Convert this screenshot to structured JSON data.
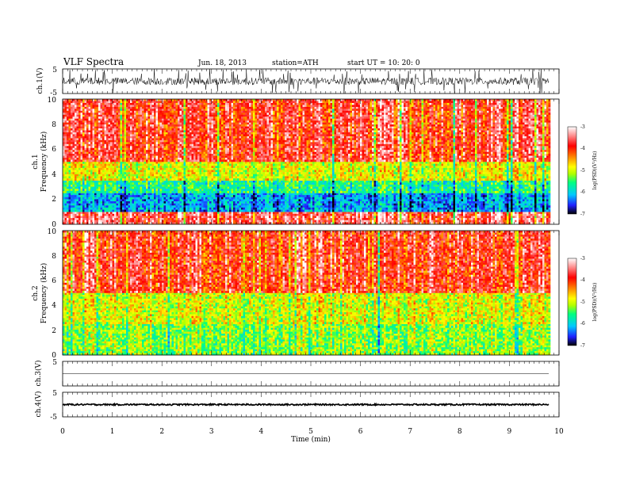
{
  "header": {
    "title": "VLF  Spectra",
    "date": "Jun. 18, 2013",
    "station": "station=ATH",
    "start": "start  UT  =    10: 20: 0"
  },
  "chart_data": [
    {
      "type": "line",
      "name": "ch1-waveform",
      "ylabel": "ch.1(V)",
      "ylim": [
        -5,
        5
      ],
      "yticks": [
        "5",
        "-5"
      ],
      "baseline": 0,
      "amplitude_typical": 1.5,
      "spike_max": 5
    },
    {
      "type": "heatmap",
      "name": "ch1-spectrogram",
      "ylabel_channel": "ch.1",
      "ylabel": "Frequency  (kHz)",
      "ylim": [
        0,
        10
      ],
      "yticks": [
        "0",
        "2",
        "4",
        "6",
        "8",
        "10"
      ],
      "colorbar": {
        "label": "log(PSD)(V²/Hz)",
        "range": [
          -7,
          -3
        ],
        "ticks": [
          "-3",
          "-4",
          "-5",
          "-6",
          "-7"
        ],
        "colors": [
          "#000000",
          "#2020ff",
          "#00c8ff",
          "#00ff80",
          "#b0ff00",
          "#ffff00",
          "#ff8000",
          "#ff0000",
          "#ff9090",
          "#ffffff"
        ]
      },
      "bands": [
        {
          "from_khz": 0,
          "to_khz": 1.0,
          "logpsd": -3.6
        },
        {
          "from_khz": 1.0,
          "to_khz": 2.5,
          "logpsd": -6.2
        },
        {
          "from_khz": 2.5,
          "to_khz": 3.5,
          "logpsd": -5.6
        },
        {
          "from_khz": 3.5,
          "to_khz": 5.0,
          "logpsd": -4.9
        },
        {
          "from_khz": 5.0,
          "to_khz": 10.0,
          "logpsd": -3.8
        }
      ]
    },
    {
      "type": "heatmap",
      "name": "ch2-spectrogram",
      "ylabel_channel": "ch.2",
      "ylabel": "Frequency  (kHz)",
      "ylim": [
        0,
        10
      ],
      "yticks": [
        "0",
        "2",
        "4",
        "6",
        "8",
        "10"
      ],
      "colorbar": {
        "label": "log(PSD)(V²/Hz)",
        "range": [
          -7,
          -3
        ],
        "ticks": [
          "-3",
          "-4",
          "-5",
          "-6",
          "-7"
        ],
        "colors": [
          "#000000",
          "#2020ff",
          "#00c8ff",
          "#00ff80",
          "#b0ff00",
          "#ffff00",
          "#ff8000",
          "#ff0000",
          "#ff9090",
          "#ffffff"
        ]
      },
      "bands": [
        {
          "from_khz": 0,
          "to_khz": 2.5,
          "logpsd": -5.2
        },
        {
          "from_khz": 2.5,
          "to_khz": 5.0,
          "logpsd": -4.9
        },
        {
          "from_khz": 5.0,
          "to_khz": 10.0,
          "logpsd": -3.8
        }
      ]
    },
    {
      "type": "line",
      "name": "ch3-waveform",
      "ylabel": "ch.3(V)",
      "ylim": [
        -5,
        5
      ],
      "yticks": [
        "5"
      ],
      "baseline": 0,
      "amplitude_typical": 0.05
    },
    {
      "type": "line",
      "name": "ch4-waveform",
      "ylabel": "ch.4(V)",
      "ylim": [
        -5,
        5
      ],
      "yticks": [
        "5",
        "-5"
      ],
      "baseline": 0,
      "amplitude_typical": 0.3
    }
  ],
  "time_axis": {
    "xlabel": "Time  (min)",
    "xlim": [
      0,
      10
    ],
    "data_end": 9.8,
    "ticks": [
      "0",
      "1",
      "2",
      "3",
      "4",
      "5",
      "6",
      "7",
      "8",
      "9",
      "10"
    ]
  }
}
